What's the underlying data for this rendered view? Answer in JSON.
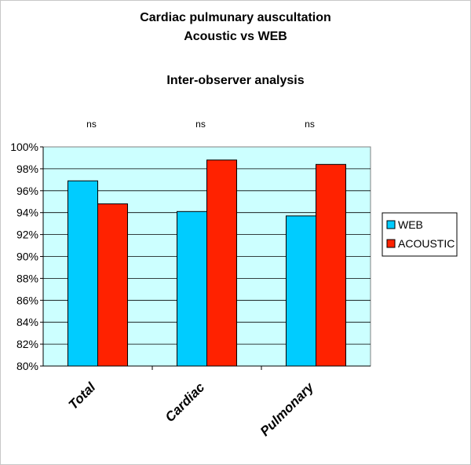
{
  "chart_data": {
    "type": "bar",
    "title_lines": [
      "Cardiac pulmunary auscultation",
      "Acoustic vs WEB"
    ],
    "subtitle": "Inter-observer analysis",
    "categories": [
      "Total",
      "Cardiac",
      "Pulmonary"
    ],
    "series": [
      {
        "name": "WEB",
        "values": [
          96.9,
          94.1,
          93.7
        ],
        "color": "#00ccff"
      },
      {
        "name": "ACOUSTIC",
        "values": [
          94.8,
          98.8,
          98.4
        ],
        "color": "#ff2200"
      }
    ],
    "annotations": [
      "ns",
      "ns",
      "ns"
    ],
    "y_ticks": [
      "80%",
      "82%",
      "84%",
      "86%",
      "88%",
      "90%",
      "92%",
      "94%",
      "96%",
      "98%",
      "100%"
    ],
    "ylim": [
      80,
      100
    ],
    "y_unit": "%",
    "plot_background": "#ccffff",
    "legend_position": "right",
    "grid": true
  }
}
